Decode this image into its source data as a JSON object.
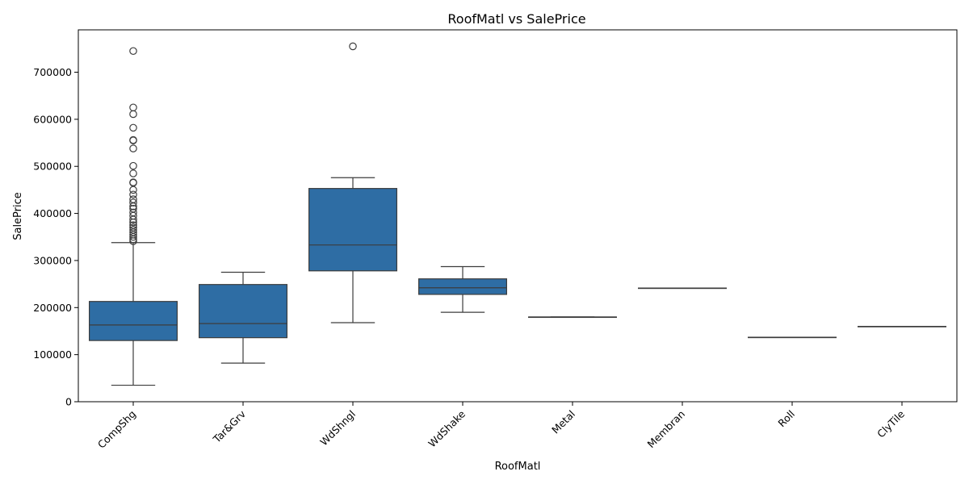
{
  "chart_data": {
    "type": "box",
    "title": "RoofMatl vs SalePrice",
    "xlabel": "RoofMatl",
    "ylabel": "SalePrice",
    "ylim": [
      0,
      790000
    ],
    "yticks": [
      0,
      100000,
      200000,
      300000,
      400000,
      500000,
      600000,
      700000
    ],
    "grid": false,
    "box_color": "#2e6da4",
    "categories": [
      "CompShg",
      "Tar&Grv",
      "WdShngl",
      "WdShake",
      "Metal",
      "Membran",
      "Roll",
      "ClyTile"
    ],
    "boxes": [
      {
        "category": "CompShg",
        "whisker_low": 35000,
        "q1": 130000,
        "median": 163000,
        "q3": 213000,
        "whisker_high": 338000,
        "outliers": [
          745000,
          625000,
          611000,
          582000,
          556000,
          555000,
          538000,
          501000,
          485000,
          466000,
          465000,
          450000,
          440000,
          430000,
          423000,
          415000,
          410000,
          402000,
          395000,
          387000,
          381000,
          375000,
          370000,
          365000,
          360000,
          355000,
          350000,
          345000,
          341000
        ]
      },
      {
        "category": "Tar&Grv",
        "whisker_low": 82000,
        "q1": 136000,
        "median": 166000,
        "q3": 249000,
        "whisker_high": 275000,
        "outliers": []
      },
      {
        "category": "WdShngl",
        "whisker_low": 168000,
        "q1": 278000,
        "median": 333000,
        "q3": 453000,
        "whisker_high": 476000,
        "outliers": [
          755000
        ]
      },
      {
        "category": "WdShake",
        "whisker_low": 190000,
        "q1": 228000,
        "median": 242000,
        "q3": 261000,
        "whisker_high": 287000,
        "outliers": []
      },
      {
        "category": "Metal",
        "whisker_low": 180000,
        "q1": 180000,
        "median": 180000,
        "q3": 180000,
        "whisker_high": 180000,
        "outliers": []
      },
      {
        "category": "Membran",
        "whisker_low": 241500,
        "q1": 241500,
        "median": 241500,
        "q3": 241500,
        "whisker_high": 241500,
        "outliers": []
      },
      {
        "category": "Roll",
        "whisker_low": 137000,
        "q1": 137000,
        "median": 137000,
        "q3": 137000,
        "whisker_high": 137000,
        "outliers": []
      },
      {
        "category": "ClyTile",
        "whisker_low": 160000,
        "q1": 160000,
        "median": 160000,
        "q3": 160000,
        "whisker_high": 160000,
        "outliers": []
      }
    ]
  }
}
